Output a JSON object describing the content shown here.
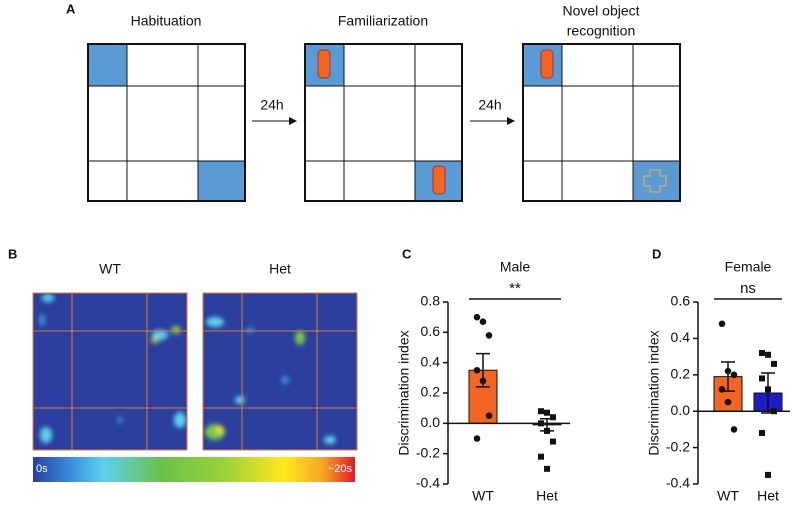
{
  "panel_labels": [
    "A",
    "B",
    "C",
    "D"
  ],
  "diagram": {
    "stages": [
      {
        "label": [
          "Habituation"
        ]
      },
      {
        "label": [
          "Familiarization"
        ]
      },
      {
        "label": [
          "Novel object",
          "recognition"
        ]
      }
    ],
    "intervals": [
      "24h",
      "24h"
    ]
  },
  "heatmap": {
    "groups": [
      "WT",
      "Het"
    ],
    "scale_min": "0s",
    "scale_max": "~20s"
  },
  "chart_data": [
    {
      "type": "bar",
      "title": "Male",
      "ylabel": "Discrimination index",
      "significance": "**",
      "categories": [
        "WT",
        "Het"
      ],
      "values": [
        0.35,
        -0.01
      ],
      "errors": [
        0.11,
        0.04
      ],
      "colors": [
        "#f26522",
        "#1c1cc8"
      ],
      "points": [
        [
          0.7,
          0.67,
          0.58,
          0.35,
          0.28,
          0.05,
          -0.1
        ],
        [
          0.08,
          0.07,
          0.04,
          0.0,
          -0.05,
          -0.12,
          -0.22,
          -0.3
        ]
      ],
      "ylim": [
        -0.4,
        0.8
      ],
      "yticks": [
        -0.4,
        -0.2,
        {
          "value": 0,
          "label": "0.0"
        },
        0.2,
        0.4,
        0.6,
        0.8
      ]
    },
    {
      "type": "bar",
      "title": "Female",
      "ylabel": "Discrimination index",
      "significance": "ns",
      "categories": [
        "WT",
        "Het"
      ],
      "values": [
        0.19,
        0.1
      ],
      "errors": [
        0.08,
        0.11
      ],
      "colors": [
        "#f26522",
        "#1c1cc8"
      ],
      "points": [
        [
          0.48,
          0.22,
          0.2,
          0.12,
          0.05,
          -0.1
        ],
        [
          0.32,
          0.31,
          0.26,
          0.18,
          0.12,
          0.0,
          -0.12,
          -0.35
        ]
      ],
      "ylim": [
        -0.4,
        0.6
      ],
      "yticks": [
        -0.4,
        -0.2,
        {
          "value": 0,
          "label": "0.0"
        },
        0.2,
        0.4,
        0.6
      ]
    }
  ]
}
